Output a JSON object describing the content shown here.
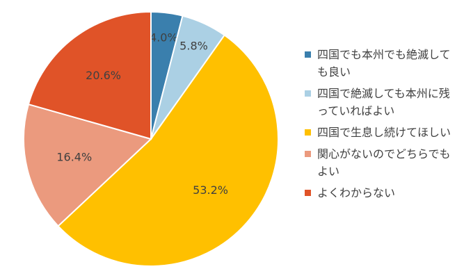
{
  "chart_data": {
    "type": "pie",
    "categories": [
      "四国でも本州でも絶滅しても良い",
      "四国で絶滅しても本州に残っていればよい",
      "四国で生息し続けてほしい",
      "関心がないのでどちらでもよい",
      "よくわからない"
    ],
    "values": [
      4.0,
      5.8,
      53.2,
      16.4,
      20.6
    ],
    "value_labels": [
      "4.0%",
      "5.8%",
      "53.2%",
      "16.4%",
      "20.6%"
    ],
    "colors": [
      "#3a7fad",
      "#abd0e4",
      "#ffc000",
      "#eb9a7e",
      "#e05328"
    ],
    "legend": "right"
  }
}
